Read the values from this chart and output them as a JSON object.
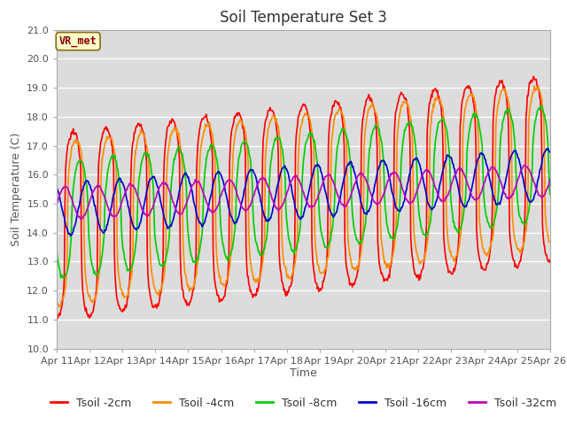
{
  "title": "Soil Temperature Set 3",
  "xlabel": "Time",
  "ylabel": "Soil Temperature (C)",
  "ylim": [
    10.0,
    21.0
  ],
  "yticks": [
    10.0,
    11.0,
    12.0,
    13.0,
    14.0,
    15.0,
    16.0,
    17.0,
    18.0,
    19.0,
    20.0,
    21.0
  ],
  "xtick_labels": [
    "Apr 11",
    "Apr 12",
    "Apr 13",
    "Apr 14",
    "Apr 15",
    "Apr 16",
    "Apr 17",
    "Apr 18",
    "Apr 19",
    "Apr 20",
    "Apr 21",
    "Apr 22",
    "Apr 23",
    "Apr 24",
    "Apr 25",
    "Apr 26"
  ],
  "legend_label": "VR_met",
  "series": {
    "Tsoil -2cm": {
      "color": "#FF0000",
      "lw": 1.2
    },
    "Tsoil -4cm": {
      "color": "#FF8C00",
      "lw": 1.2
    },
    "Tsoil -8cm": {
      "color": "#00CC00",
      "lw": 1.2
    },
    "Tsoil -16cm": {
      "color": "#0000CC",
      "lw": 1.2
    },
    "Tsoil -32cm": {
      "color": "#BB00BB",
      "lw": 1.2
    }
  },
  "bg_color": "#DCDCDC",
  "grid_color": "#FFFFFF",
  "title_fontsize": 12,
  "axis_label_fontsize": 9,
  "tick_fontsize": 8,
  "legend_fontsize": 9
}
